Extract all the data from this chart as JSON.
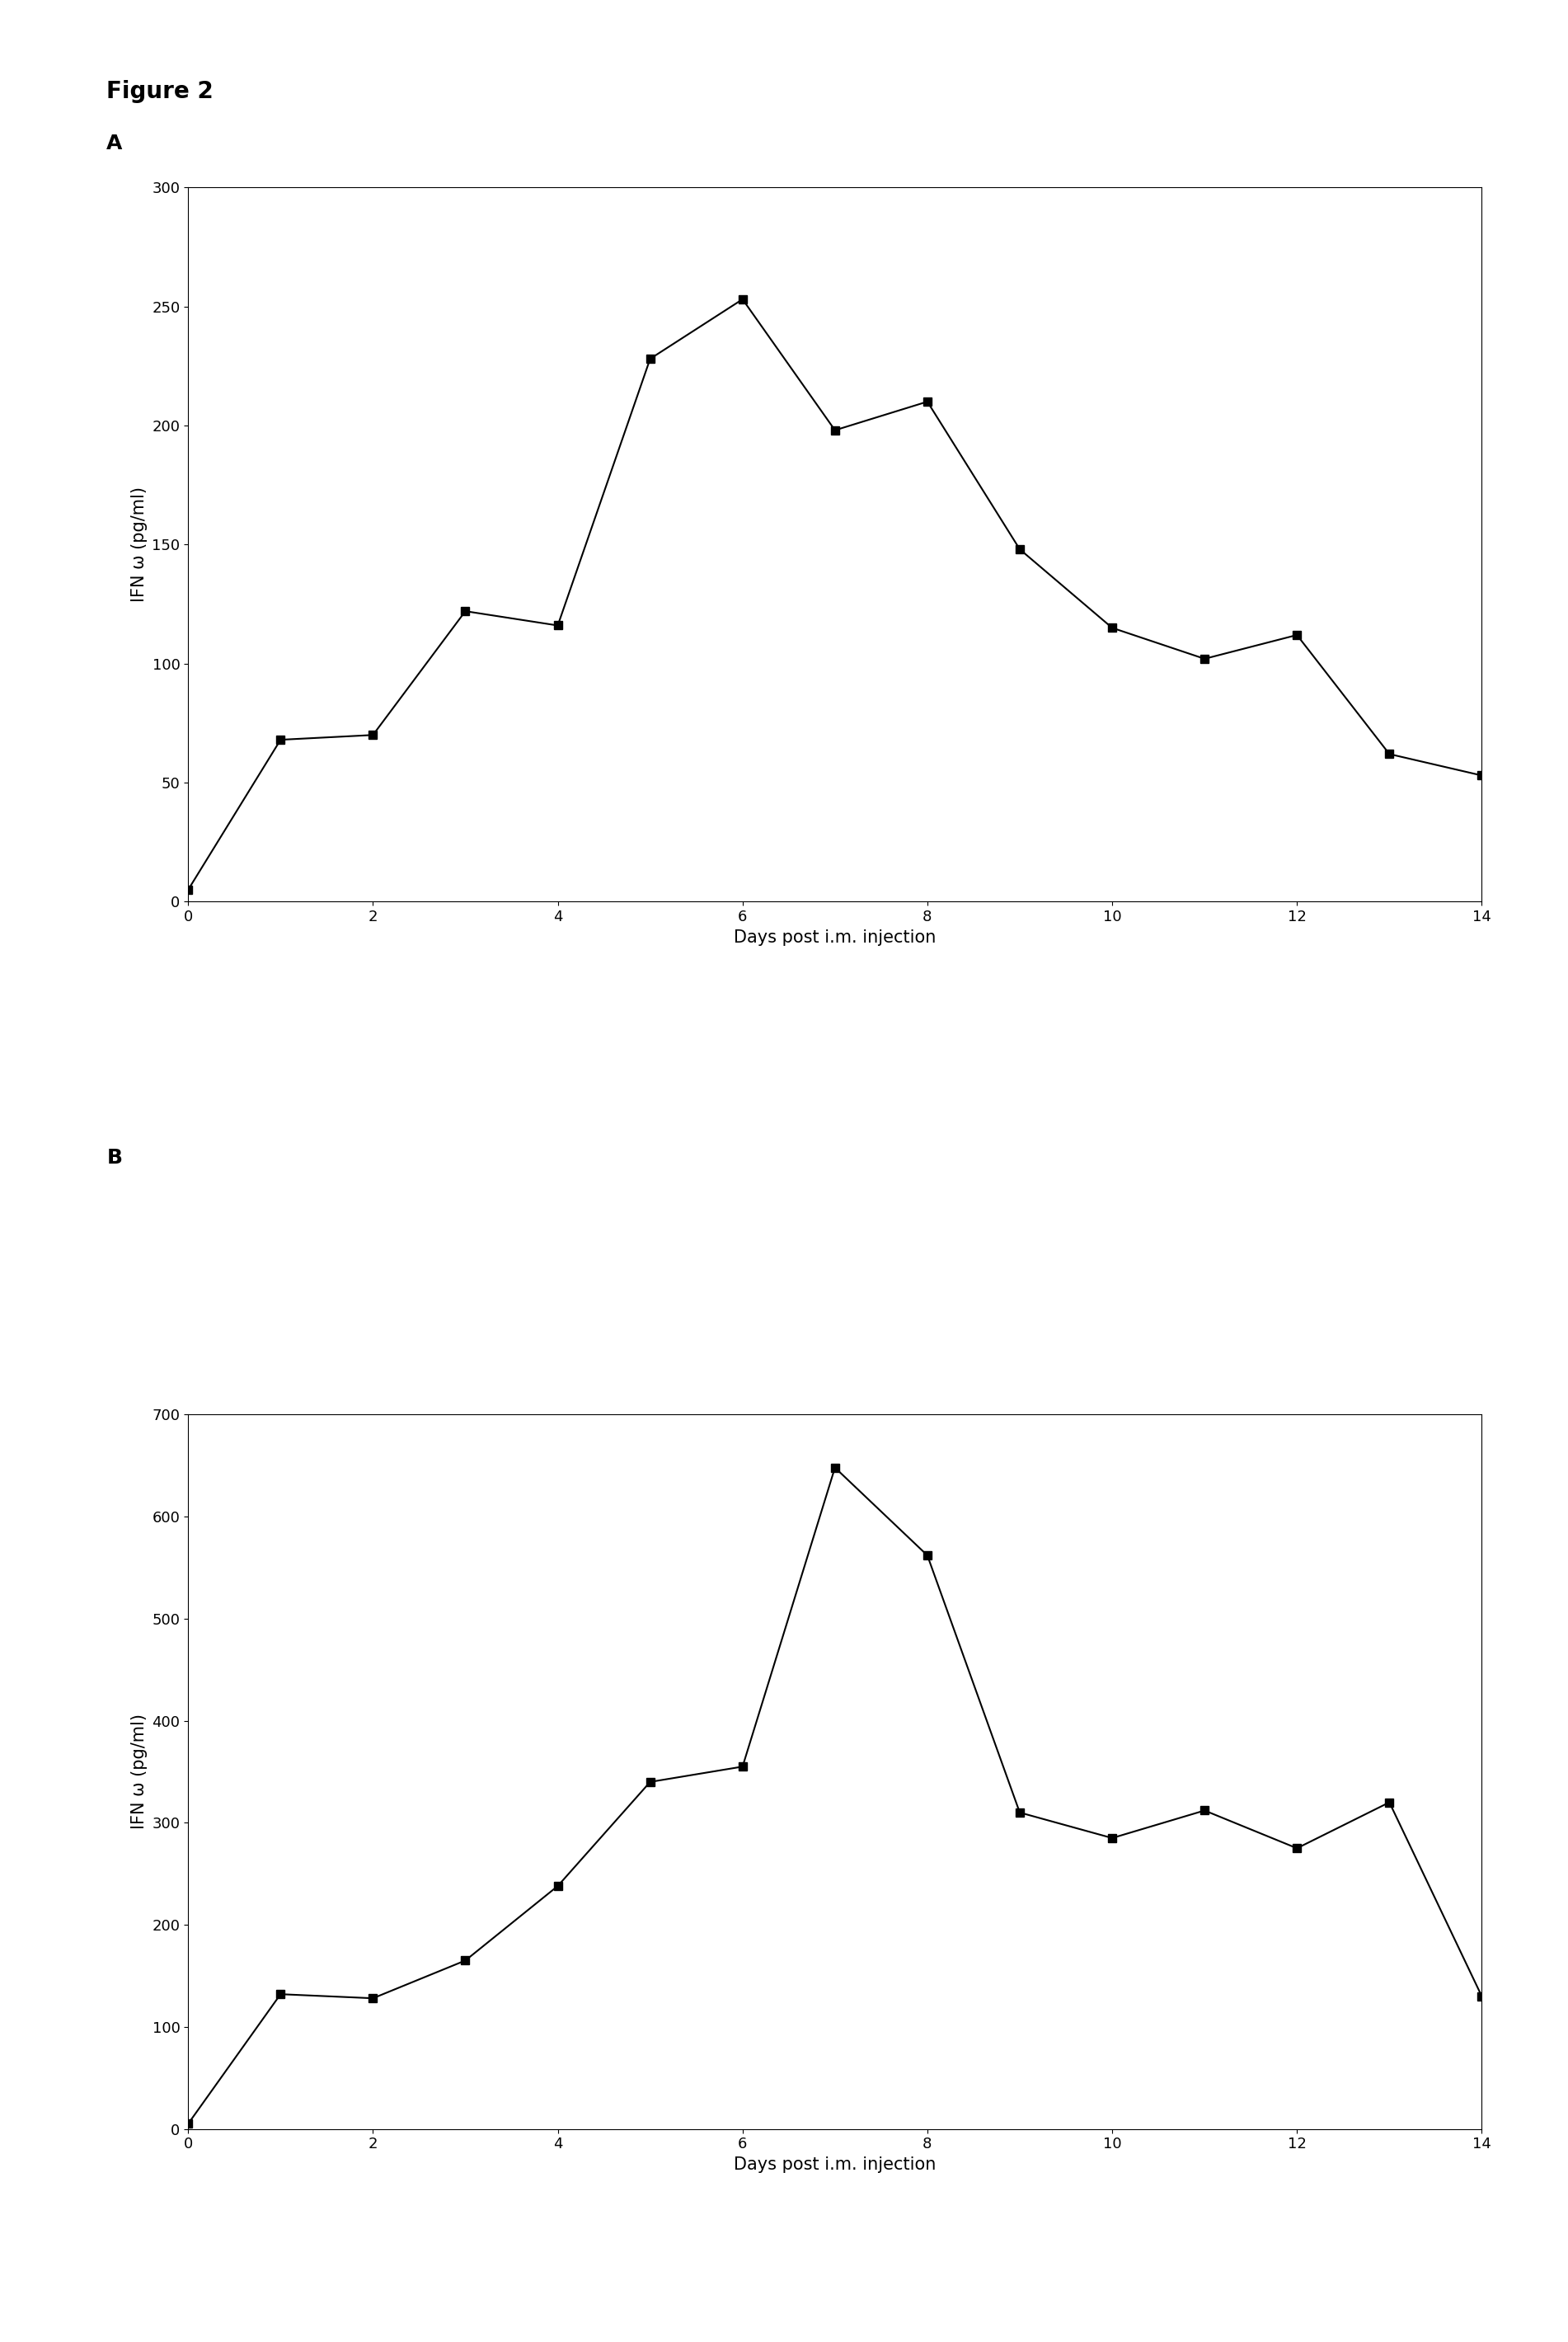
{
  "figure_label": "Figure 2",
  "panel_A_label": "A",
  "panel_B_label": "B",
  "A": {
    "x": [
      0,
      1,
      2,
      3,
      4,
      5,
      6,
      7,
      8,
      9,
      10,
      11,
      12,
      13,
      14
    ],
    "y": [
      5,
      68,
      70,
      122,
      116,
      228,
      253,
      198,
      210,
      148,
      115,
      102,
      112,
      62,
      53
    ],
    "ylabel": "IFN ω (pg/ml)",
    "xlabel": "Days post i.m. injection",
    "ylim": [
      0,
      300
    ],
    "yticks": [
      0,
      50,
      100,
      150,
      200,
      250,
      300
    ],
    "xlim": [
      0,
      14
    ],
    "xticks": [
      0,
      2,
      4,
      6,
      8,
      10,
      12,
      14
    ]
  },
  "B": {
    "x": [
      0,
      1,
      2,
      3,
      4,
      5,
      6,
      7,
      8,
      9,
      10,
      11,
      12,
      13,
      14
    ],
    "y": [
      5,
      132,
      128,
      165,
      238,
      340,
      355,
      648,
      562,
      310,
      285,
      312,
      275,
      320,
      130
    ],
    "ylabel": "IFN ω (pg/ml)",
    "xlabel": "Days post i.m. injection",
    "ylim": [
      0,
      700
    ],
    "yticks": [
      0,
      100,
      200,
      300,
      400,
      500,
      600,
      700
    ],
    "xlim": [
      0,
      14
    ],
    "xticks": [
      0,
      2,
      4,
      6,
      8,
      10,
      12,
      14
    ]
  },
  "line_color": "#000000",
  "marker": "s",
  "markersize": 7,
  "linewidth": 1.5,
  "bg_color": "#ffffff",
  "figure_label_fontsize": 20,
  "panel_label_fontsize": 18,
  "axis_label_fontsize": 15,
  "tick_label_fontsize": 13
}
